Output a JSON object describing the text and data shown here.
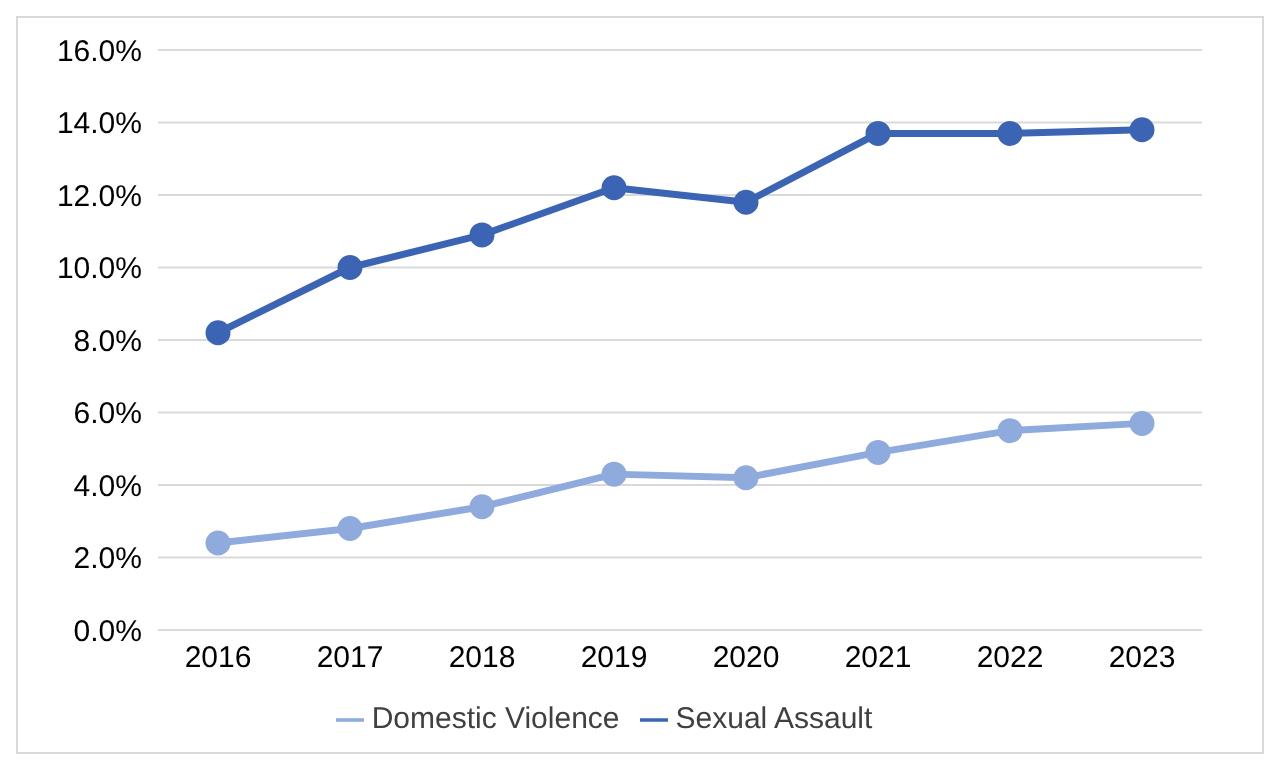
{
  "chart_data": {
    "type": "line",
    "categories": [
      "2016",
      "2017",
      "2018",
      "2019",
      "2020",
      "2021",
      "2022",
      "2023"
    ],
    "series": [
      {
        "name": "Domestic Violence",
        "color": "#8faadc",
        "values": [
          2.4,
          2.8,
          3.4,
          4.3,
          4.2,
          4.9,
          5.5,
          5.7
        ]
      },
      {
        "name": "Sexual Assault",
        "color": "#3c64b4",
        "values": [
          8.2,
          10.0,
          10.9,
          12.2,
          11.8,
          13.7,
          13.7,
          13.8
        ]
      }
    ],
    "ylim": [
      0,
      16
    ],
    "yticks": [
      {
        "value": 0,
        "label": "0.0%"
      },
      {
        "value": 2,
        "label": "2.0%"
      },
      {
        "value": 4,
        "label": "4.0%"
      },
      {
        "value": 6,
        "label": "6.0%"
      },
      {
        "value": 8,
        "label": "8.0%"
      },
      {
        "value": 10,
        "label": "10.0%"
      },
      {
        "value": 12,
        "label": "12.0%"
      },
      {
        "value": 14,
        "label": "14.0%"
      },
      {
        "value": 16,
        "label": "16.0%"
      }
    ],
    "grid": "y",
    "legend": "bottom",
    "marker": "circle",
    "line_style": "solid"
  }
}
